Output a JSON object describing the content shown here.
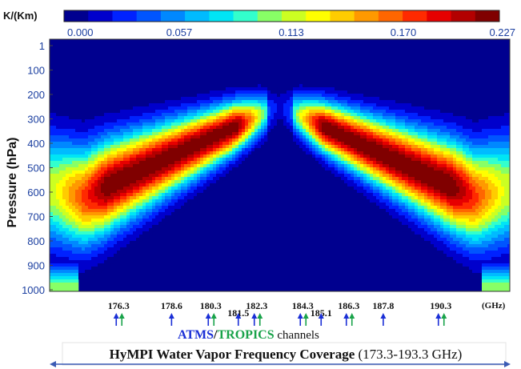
{
  "chart_data": {
    "type": "heatmap",
    "colorbar": {
      "label": "K/(Km)",
      "ticks": [
        "0.000",
        "0.057",
        "0.113",
        "0.170",
        "0.227"
      ],
      "range": [
        0.0,
        0.227
      ],
      "colors": [
        "#00008f",
        "#0000cc",
        "#0022ff",
        "#0055ff",
        "#0088ff",
        "#00bbff",
        "#00e5f5",
        "#33ffcc",
        "#88ff66",
        "#ccff22",
        "#ffff00",
        "#ffcc00",
        "#ff9900",
        "#ff6600",
        "#ff2a00",
        "#e60000",
        "#b30000",
        "#800000"
      ]
    },
    "ylabel": "Pressure (hPa)",
    "y_ticks": [
      "1",
      "100",
      "200",
      "300",
      "400",
      "500",
      "600",
      "700",
      "800",
      "900",
      "1000"
    ],
    "ylim": [
      1000,
      1
    ],
    "xlim_ghz": [
      173.3,
      193.3
    ],
    "x_unit": "(GHz)",
    "x_ticks": [
      "176.3",
      "178.6",
      "180.3",
      "181.5",
      "182.3",
      "184.3",
      "185.1",
      "186.3",
      "187.8",
      "190.3"
    ],
    "x_tick_values": [
      176.3,
      178.6,
      180.3,
      181.5,
      182.3,
      184.3,
      185.1,
      186.3,
      187.8,
      190.3
    ],
    "line_center_ghz": 183.3,
    "peak_pressure_hpa": 450,
    "channels": [
      {
        "freq": 176.3,
        "atms": true,
        "tropics": true
      },
      {
        "freq": 178.6,
        "atms": true,
        "tropics": false
      },
      {
        "freq": 180.3,
        "atms": true,
        "tropics": true
      },
      {
        "freq": 181.5,
        "atms": true,
        "tropics": false
      },
      {
        "freq": 182.3,
        "atms": true,
        "tropics": true
      },
      {
        "freq": 184.3,
        "atms": true,
        "tropics": true
      },
      {
        "freq": 185.1,
        "atms": true,
        "tropics": false
      },
      {
        "freq": 186.3,
        "atms": true,
        "tropics": true
      },
      {
        "freq": 187.8,
        "atms": true,
        "tropics": false
      },
      {
        "freq": 190.3,
        "atms": true,
        "tropics": true
      }
    ],
    "legend": {
      "atms": {
        "label": "ATMS",
        "color": "#1a2fd6"
      },
      "separator": "/",
      "tropics": {
        "label": "TROPICS",
        "color": "#19a34a"
      },
      "suffix": " channels"
    },
    "footer": {
      "bold": "HyMPI Water Vapor Frequency Coverage",
      "range": " (173.3-193.3 GHz)",
      "arrow_color": "#3b5bb5"
    }
  }
}
